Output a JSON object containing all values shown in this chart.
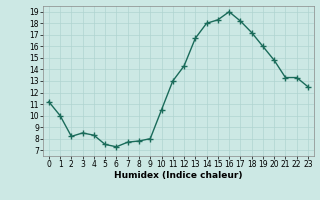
{
  "x": [
    0,
    1,
    2,
    3,
    4,
    5,
    6,
    7,
    8,
    9,
    10,
    11,
    12,
    13,
    14,
    15,
    16,
    17,
    18,
    19,
    20,
    21,
    22,
    23
  ],
  "y": [
    11.2,
    10.0,
    8.2,
    8.5,
    8.3,
    7.5,
    7.3,
    7.7,
    7.8,
    8.0,
    10.5,
    13.0,
    14.3,
    16.7,
    18.0,
    18.3,
    19.0,
    18.2,
    17.2,
    16.0,
    14.8,
    13.3,
    13.3,
    12.5
  ],
  "xlim": [
    -0.5,
    23.5
  ],
  "ylim": [
    6.5,
    19.5
  ],
  "yticks": [
    7,
    8,
    9,
    10,
    11,
    12,
    13,
    14,
    15,
    16,
    17,
    18,
    19
  ],
  "xticks": [
    0,
    1,
    2,
    3,
    4,
    5,
    6,
    7,
    8,
    9,
    10,
    11,
    12,
    13,
    14,
    15,
    16,
    17,
    18,
    19,
    20,
    21,
    22,
    23
  ],
  "xlabel": "Humidex (Indice chaleur)",
  "line_color": "#1a6b5a",
  "marker": "+",
  "marker_size": 4,
  "line_width": 1.0,
  "bg_color": "#cce8e4",
  "grid_color": "#b0d4d0",
  "tick_fontsize": 5.5,
  "xlabel_fontsize": 6.5
}
